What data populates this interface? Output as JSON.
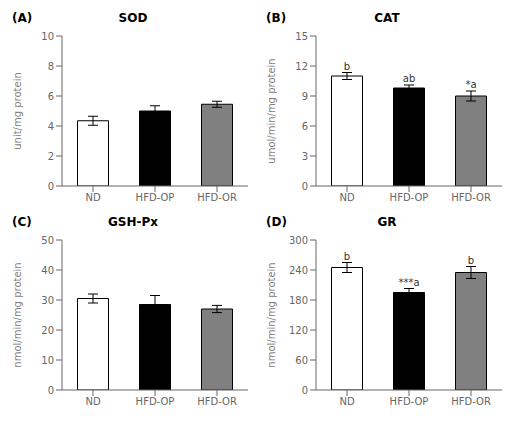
{
  "chart_data": [
    {
      "type": "bar",
      "subtitle": "(A)",
      "title": "SOD",
      "ylabel": "unit/mg protein",
      "categories": [
        "ND",
        "HFD-OP",
        "HFD-OR"
      ],
      "values": [
        4.35,
        5.0,
        5.45
      ],
      "errors": [
        0.3,
        0.35,
        0.2
      ],
      "colors": [
        "white",
        "black",
        "#808080"
      ],
      "ylim": [
        0,
        10
      ],
      "yticks": [
        0,
        2,
        4,
        6,
        8,
        10
      ],
      "grid": false
    },
    {
      "type": "bar",
      "subtitle": "(B)",
      "title": "CAT",
      "ylabel": "umol/min/mg protein",
      "categories": [
        "ND",
        "HFD-OP",
        "HFD-OR"
      ],
      "values": [
        11.0,
        9.8,
        9.0
      ],
      "errors": [
        0.35,
        0.3,
        0.5
      ],
      "colors": [
        "white",
        "black",
        "#808080"
      ],
      "ylim": [
        0,
        15
      ],
      "yticks": [
        0,
        3,
        6,
        9,
        12,
        15
      ],
      "grid": false,
      "annotations": [
        {
          "category": "ND",
          "text": "b"
        },
        {
          "category": "HFD-OP",
          "text": "ab"
        },
        {
          "category": "HFD-OR",
          "text": "*a"
        }
      ]
    },
    {
      "type": "bar",
      "subtitle": "(C)",
      "title": "GSH-Px",
      "ylabel": "nmol/min/mg protein",
      "categories": [
        "ND",
        "HFD-OP",
        "HFD-OR"
      ],
      "values": [
        30.5,
        28.5,
        27.0
      ],
      "errors": [
        1.5,
        3.0,
        1.2
      ],
      "colors": [
        "white",
        "black",
        "#808080"
      ],
      "ylim": [
        0,
        50
      ],
      "yticks": [
        0,
        10,
        20,
        30,
        40,
        50
      ],
      "grid": false
    },
    {
      "type": "bar",
      "subtitle": "(D)",
      "title": "GR",
      "ylabel": "nmol/min/mg protein",
      "categories": [
        "ND",
        "HFD-OP",
        "HFD-OR"
      ],
      "values": [
        245,
        195,
        235
      ],
      "errors": [
        10,
        8,
        12
      ],
      "colors": [
        "white",
        "black",
        "#808080"
      ],
      "ylim": [
        0,
        300
      ],
      "yticks": [
        0,
        60,
        120,
        180,
        240,
        300
      ],
      "grid": false,
      "annotations": [
        {
          "category": "ND",
          "text": "b"
        },
        {
          "category": "HFD-OP",
          "text": "***a"
        },
        {
          "category": "HFD-OR",
          "text": "b"
        }
      ]
    }
  ]
}
